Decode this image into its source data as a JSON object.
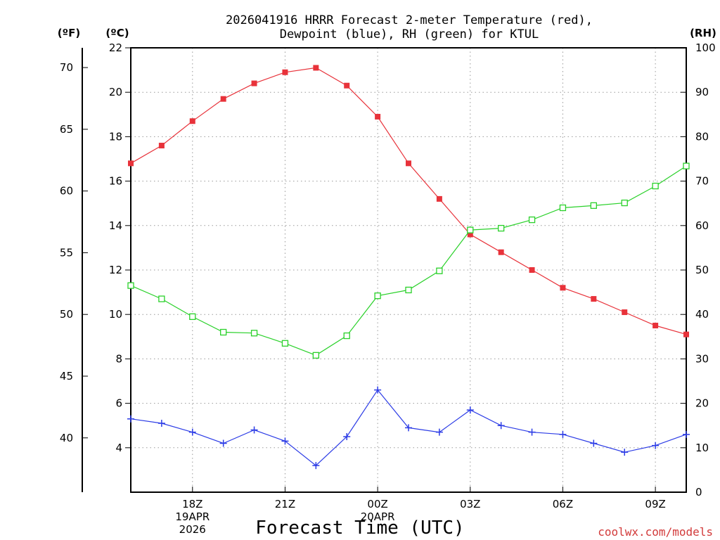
{
  "chart_data": {
    "type": "line",
    "title": "2026041916 HRRR Forecast 2-meter Temperature (red),",
    "subtitle": "Dewpoint (blue), RH (green) for KTUL",
    "xlabel": "Forecast Time (UTC)",
    "credit": "coolwx.com/models",
    "units": {
      "fahrenheit": "(ºF)",
      "celsius": "(ºC)",
      "rh": "(RH)"
    },
    "x_range": [
      0,
      18
    ],
    "celsius_axis": {
      "range": [
        2,
        22
      ],
      "ticks": [
        4,
        6,
        8,
        10,
        12,
        14,
        16,
        18,
        20,
        22
      ]
    },
    "fahrenheit_axis": {
      "ticks": [
        40,
        45,
        50,
        55,
        60,
        65,
        70
      ]
    },
    "rh_axis": {
      "range": [
        0,
        100
      ],
      "ticks": [
        0,
        10,
        20,
        30,
        40,
        50,
        60,
        70,
        80,
        90,
        100
      ]
    },
    "x_ticks": [
      {
        "x": 2,
        "lines": [
          "18Z",
          "19APR",
          "2026"
        ]
      },
      {
        "x": 5,
        "lines": [
          "21Z"
        ]
      },
      {
        "x": 8,
        "lines": [
          "00Z",
          "20APR"
        ]
      },
      {
        "x": 11,
        "lines": [
          "03Z"
        ]
      },
      {
        "x": 14,
        "lines": [
          "06Z"
        ]
      },
      {
        "x": 17,
        "lines": [
          "09Z"
        ]
      }
    ],
    "series": [
      {
        "name": "Temperature",
        "axis": "celsius",
        "color": "#e8323a",
        "marker": "filled-square",
        "x": [
          0,
          1,
          2,
          3,
          4,
          5,
          6,
          7,
          8,
          9,
          10,
          11,
          12,
          13,
          14,
          15,
          16,
          17,
          18
        ],
        "values": [
          16.8,
          17.6,
          18.7,
          19.7,
          20.4,
          20.9,
          21.1,
          20.3,
          18.9,
          16.8,
          15.2,
          13.6,
          12.8,
          12.0,
          11.2,
          10.7,
          10.1,
          9.5,
          9.1
        ]
      },
      {
        "name": "Dewpoint",
        "axis": "celsius",
        "color": "#2c3ce6",
        "marker": "plus",
        "x": [
          0,
          1,
          2,
          3,
          4,
          5,
          6,
          7,
          8,
          9,
          10,
          11,
          12,
          13,
          14,
          15,
          16,
          17,
          18
        ],
        "values": [
          5.3,
          5.1,
          4.7,
          4.2,
          4.8,
          4.3,
          3.2,
          4.5,
          6.6,
          4.9,
          4.7,
          5.7,
          5.0,
          4.7,
          4.6,
          4.2,
          3.8,
          4.1,
          4.6
        ]
      },
      {
        "name": "RH",
        "axis": "rh",
        "color": "#2ad12a",
        "marker": "open-square",
        "x": [
          0,
          1,
          2,
          3,
          4,
          5,
          6,
          7,
          8,
          9,
          10,
          11,
          12,
          13,
          14,
          15,
          16,
          17,
          18
        ],
        "values": [
          46.5,
          43.5,
          39.5,
          36,
          35.8,
          33.5,
          30.8,
          35.2,
          44.2,
          45.5,
          49.8,
          59,
          59.4,
          61.3,
          64,
          64.5,
          65.1,
          68.9,
          73.4
        ]
      }
    ]
  }
}
